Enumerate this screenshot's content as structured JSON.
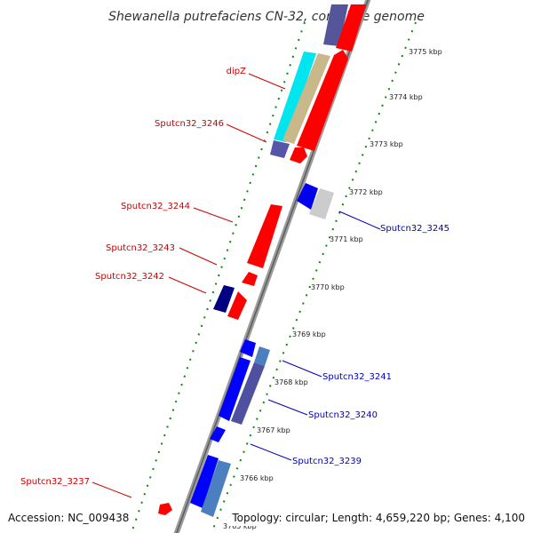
{
  "title": "Shewanella putrefaciens CN-32, complete genome",
  "footer": {
    "accession": "Accession: NC_009438",
    "summary": "Topology: circular; Length: 4,659,220 bp; Genes: 4,100"
  },
  "ticks": [
    "3775 kbp",
    "3774 kbp",
    "3773 kbp",
    "3772 kbp",
    "3771 kbp",
    "3770 kbp",
    "3769 kbp",
    "3768 kbp",
    "3767 kbp",
    "3766 kbp",
    "3765 kbp"
  ],
  "gene_labels_left": [
    "dipZ",
    "Sputcn32_3246",
    "Sputcn32_3244",
    "Sputcn32_3243",
    "Sputcn32_3242",
    "Sputcn32_3237"
  ],
  "gene_labels_right": [
    "Sputcn32_3245",
    "Sputcn32_3241",
    "Sputcn32_3240",
    "Sputcn32_3239"
  ],
  "colors": {
    "forward_cds": "#ff0000",
    "reverse_cds": "#0000ff",
    "backbone": "#888888",
    "gc_skew_dots": "#008000",
    "left_label": "#cc0000",
    "right_label": "#0000bb"
  }
}
